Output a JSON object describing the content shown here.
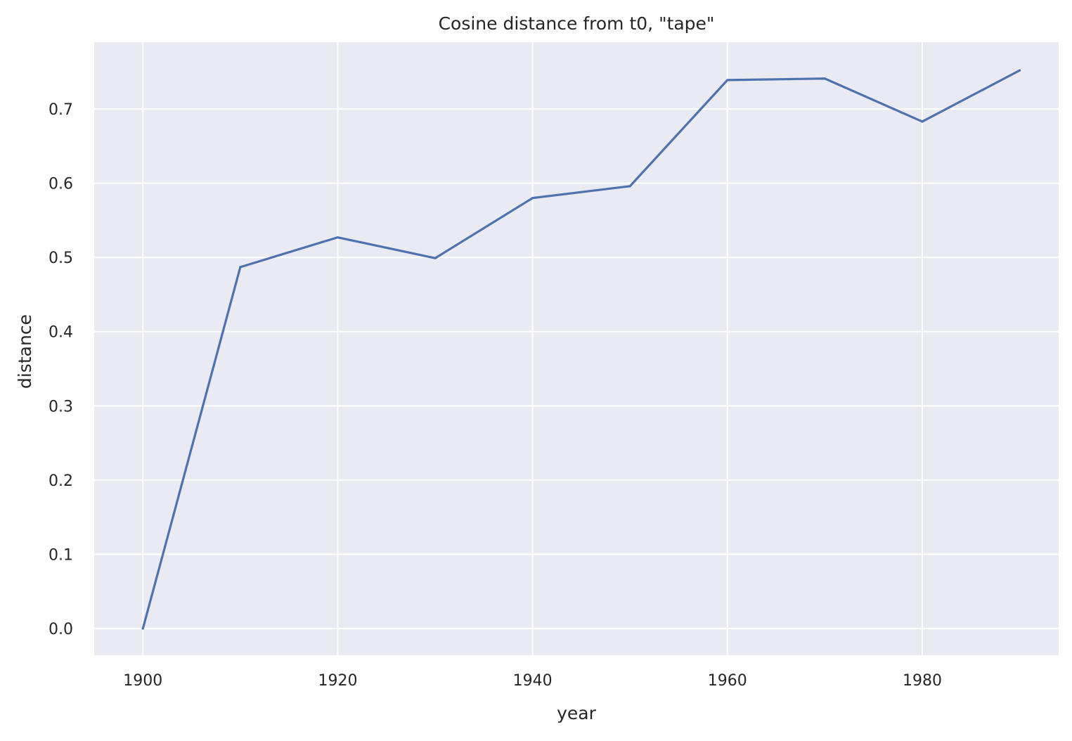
{
  "chart_data": {
    "type": "line",
    "title": "Cosine distance from t0, \"tape\"",
    "xlabel": "year",
    "ylabel": "distance",
    "xlim": [
      1895,
      1994
    ],
    "ylim": [
      -0.036,
      0.79
    ],
    "xticks": [
      1900,
      1920,
      1940,
      1960,
      1980
    ],
    "yticks": [
      0.0,
      0.1,
      0.2,
      0.3,
      0.4,
      0.5,
      0.6,
      0.7
    ],
    "grid": true,
    "legend": "none",
    "colors": {
      "background": "#eaeaf2",
      "grid": "#ffffff",
      "line": "#4c72b0",
      "text": "#262626"
    },
    "series": [
      {
        "x": [
          1900,
          1910,
          1920,
          1930,
          1940,
          1950,
          1960,
          1970,
          1980,
          1990
        ],
        "values": [
          0.0,
          0.487,
          0.527,
          0.499,
          0.58,
          0.596,
          0.739,
          0.741,
          0.683,
          0.752
        ]
      }
    ]
  }
}
